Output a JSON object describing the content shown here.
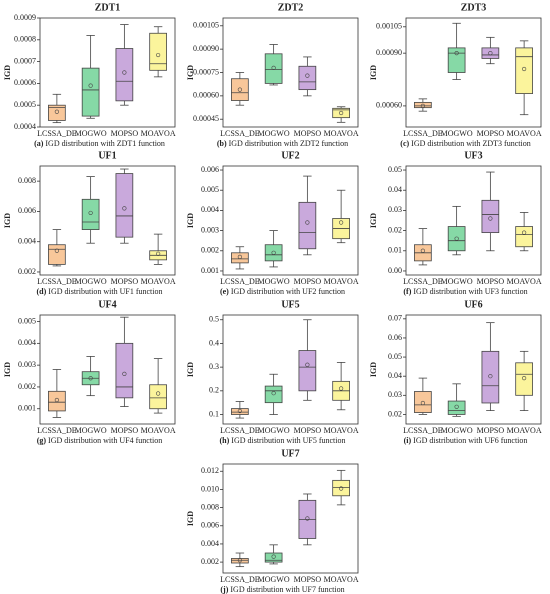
{
  "chart_data": [
    {
      "type": "box",
      "title": "ZDT1",
      "ylabel": "IGD",
      "label": "(a)",
      "caption": "IGD distribution with ZDT1 function",
      "categories": [
        "LCSSA_DE",
        "MOGWO",
        "MOPSO",
        "MOAVOA"
      ],
      "colors": [
        "#f8c79a",
        "#86d9a6",
        "#c9a9dc",
        "#fbf49c"
      ],
      "ylim": [
        0.0004,
        0.0009
      ],
      "yticks": [
        0.0004,
        0.0005,
        0.0006,
        0.0007,
        0.0008,
        0.0009
      ],
      "boxes": [
        {
          "min": 0.00042,
          "q1": 0.00043,
          "median": 0.00049,
          "q3": 0.0005,
          "max": 0.00055,
          "mean": 0.00047
        },
        {
          "min": 0.00044,
          "q1": 0.00045,
          "median": 0.00057,
          "q3": 0.00067,
          "max": 0.00082,
          "mean": 0.00059
        },
        {
          "min": 0.0005,
          "q1": 0.00052,
          "median": 0.00061,
          "q3": 0.00076,
          "max": 0.00087,
          "mean": 0.00065
        },
        {
          "min": 0.00063,
          "q1": 0.00066,
          "median": 0.00069,
          "q3": 0.00083,
          "max": 0.00086,
          "mean": 0.00073
        }
      ]
    },
    {
      "type": "box",
      "title": "ZDT2",
      "ylabel": "IGD",
      "label": "(b)",
      "caption": "IGD distribution with ZDT2 function",
      "categories": [
        "LCSSA_DE",
        "MOGWO",
        "MOPSO",
        "MOAVOA"
      ],
      "colors": [
        "#f8c79a",
        "#86d9a6",
        "#c9a9dc",
        "#fbf49c"
      ],
      "ylim": [
        0.0004,
        0.0011
      ],
      "yticks": [
        0.00045,
        {
          "value": 0.0006,
          "label": "0.00060"
        },
        0.00075,
        {
          "value": 0.0009,
          "label": "0.00090"
        },
        0.00105
      ],
      "boxes": [
        {
          "min": 0.00054,
          "q1": 0.00057,
          "median": 0.00062,
          "q3": 0.00071,
          "max": 0.00075,
          "mean": 0.00064
        },
        {
          "min": 0.00067,
          "q1": 0.00068,
          "median": 0.00077,
          "q3": 0.00087,
          "max": 0.00093,
          "mean": 0.00078
        },
        {
          "min": 0.0006,
          "q1": 0.00064,
          "median": 0.00069,
          "q3": 0.00079,
          "max": 0.00085,
          "mean": 0.00073
        },
        {
          "min": 0.00043,
          "q1": 0.00046,
          "median": 0.00051,
          "q3": 0.00052,
          "max": 0.00053,
          "mean": 0.00049
        }
      ]
    },
    {
      "type": "box",
      "title": "ZDT3",
      "ylabel": "IGD",
      "label": "(c)",
      "caption": "IGD distribution with ZDT3 function",
      "categories": [
        "LCSSA_DE",
        "MOGWO",
        "MOPSO",
        "MOAVOA"
      ],
      "colors": [
        "#f8c79a",
        "#86d9a6",
        "#c9a9dc",
        "#fbf49c"
      ],
      "ylim": [
        0.00048,
        0.0011
      ],
      "yticks": [
        {
          "value": 0.0006,
          "label": "0.00060"
        },
        {
          "value": 0.0009,
          "label": "0.00090"
        },
        0.00105
      ],
      "boxes": [
        {
          "min": 0.00057,
          "q1": 0.00059,
          "median": 0.0006,
          "q3": 0.00062,
          "max": 0.00064,
          "mean": 0.0006
        },
        {
          "min": 0.00075,
          "q1": 0.00079,
          "median": 0.0009,
          "q3": 0.00093,
          "max": 0.00107,
          "mean": 0.0009
        },
        {
          "min": 0.00084,
          "q1": 0.00087,
          "median": 0.00089,
          "q3": 0.00093,
          "max": 0.00099,
          "mean": 0.0009
        },
        {
          "min": 0.00055,
          "q1": 0.00067,
          "median": 0.00088,
          "q3": 0.00093,
          "max": 0.00097,
          "mean": 0.00081
        }
      ]
    },
    {
      "type": "box",
      "title": "UF1",
      "ylabel": "IGD",
      "label": "(d)",
      "caption": "IGD distribution with UF1 function",
      "categories": [
        "LCSSA_DE",
        "MOGWO",
        "MOPSO",
        "MOAVOA"
      ],
      "colors": [
        "#f8c79a",
        "#86d9a6",
        "#c9a9dc",
        "#fbf49c"
      ],
      "ylim": [
        0.0018,
        0.009
      ],
      "yticks": [
        0.002,
        0.004,
        0.006,
        0.008
      ],
      "boxes": [
        {
          "min": 0.0024,
          "q1": 0.0025,
          "median": 0.0035,
          "q3": 0.0038,
          "max": 0.0048,
          "mean": 0.0034
        },
        {
          "min": 0.0039,
          "q1": 0.0048,
          "median": 0.0053,
          "q3": 0.0068,
          "max": 0.0083,
          "mean": 0.0059
        },
        {
          "min": 0.0039,
          "q1": 0.0043,
          "median": 0.0057,
          "q3": 0.0085,
          "max": 0.0088,
          "mean": 0.0062
        },
        {
          "min": 0.0025,
          "q1": 0.0028,
          "median": 0.0031,
          "q3": 0.0034,
          "max": 0.0045,
          "mean": 0.0032
        }
      ]
    },
    {
      "type": "box",
      "title": "UF2",
      "ylabel": "IGD",
      "label": "(e)",
      "caption": "IGD distribution with UF2 function",
      "categories": [
        "LCSSA_DE",
        "MOGWO",
        "MOPSO",
        "MOAVOA"
      ],
      "colors": [
        "#f8c79a",
        "#86d9a6",
        "#c9a9dc",
        "#fbf49c"
      ],
      "ylim": [
        0.0008,
        0.0062
      ],
      "yticks": [
        0.001,
        0.002,
        0.003,
        0.004,
        0.005,
        0.006
      ],
      "boxes": [
        {
          "min": 0.0011,
          "q1": 0.0014,
          "median": 0.0016,
          "q3": 0.0019,
          "max": 0.0022,
          "mean": 0.0017
        },
        {
          "min": 0.0012,
          "q1": 0.0015,
          "median": 0.0018,
          "q3": 0.0023,
          "max": 0.003,
          "mean": 0.0019
        },
        {
          "min": 0.0018,
          "q1": 0.0021,
          "median": 0.0029,
          "q3": 0.0044,
          "max": 0.0057,
          "mean": 0.0034
        },
        {
          "min": 0.0024,
          "q1": 0.0026,
          "median": 0.0031,
          "q3": 0.0036,
          "max": 0.005,
          "mean": 0.0034
        }
      ]
    },
    {
      "type": "box",
      "title": "UF3",
      "ylabel": "IGD",
      "label": "(f)",
      "caption": "IGD distribution with UF3 function",
      "categories": [
        "LCSSA_DE",
        "MOGWO",
        "MOPSO",
        "MOAVOA"
      ],
      "colors": [
        "#f8c79a",
        "#86d9a6",
        "#c9a9dc",
        "#fbf49c"
      ],
      "ylim": [
        -0.002,
        0.052
      ],
      "yticks": [
        {
          "value": 0,
          "label": "0.00"
        },
        {
          "value": 0.01,
          "label": "0.01"
        },
        {
          "value": 0.02,
          "label": "0.02"
        },
        {
          "value": 0.03,
          "label": "0.03"
        },
        {
          "value": 0.04,
          "label": "0.04"
        },
        {
          "value": 0.05,
          "label": "0.05"
        }
      ],
      "boxes": [
        {
          "min": 0.003,
          "q1": 0.005,
          "median": 0.009,
          "q3": 0.013,
          "max": 0.021,
          "mean": 0.01
        },
        {
          "min": 0.008,
          "q1": 0.01,
          "median": 0.015,
          "q3": 0.022,
          "max": 0.032,
          "mean": 0.016
        },
        {
          "min": 0.01,
          "q1": 0.019,
          "median": 0.028,
          "q3": 0.035,
          "max": 0.049,
          "mean": 0.026
        },
        {
          "min": 0.01,
          "q1": 0.012,
          "median": 0.018,
          "q3": 0.022,
          "max": 0.029,
          "mean": 0.019
        }
      ]
    },
    {
      "type": "box",
      "title": "UF4",
      "ylabel": "IGD",
      "label": "(g)",
      "caption": "IGD distribution with UF4 function",
      "categories": [
        "LCSSA_DE",
        "MOGWO",
        "MOPSO",
        "MOAVOA"
      ],
      "colors": [
        "#f8c79a",
        "#86d9a6",
        "#c9a9dc",
        "#fbf49c"
      ],
      "ylim": [
        0.0003,
        0.0053
      ],
      "yticks": [
        0.001,
        0.002,
        0.003,
        0.004,
        0.005
      ],
      "boxes": [
        {
          "min": 0.0006,
          "q1": 0.0009,
          "median": 0.0013,
          "q3": 0.0018,
          "max": 0.0028,
          "mean": 0.0014
        },
        {
          "min": 0.0016,
          "q1": 0.0021,
          "median": 0.0024,
          "q3": 0.0027,
          "max": 0.0034,
          "mean": 0.0024
        },
        {
          "min": 0.0011,
          "q1": 0.0015,
          "median": 0.002,
          "q3": 0.004,
          "max": 0.0052,
          "mean": 0.0026
        },
        {
          "min": 0.0008,
          "q1": 0.001,
          "median": 0.0015,
          "q3": 0.0021,
          "max": 0.0033,
          "mean": 0.0017
        }
      ]
    },
    {
      "type": "box",
      "title": "UF5",
      "ylabel": "IGD",
      "label": "(h)",
      "caption": "IGD distribution with UF5 function",
      "categories": [
        "LCSSA_DE",
        "MOGWO",
        "MOPSO",
        "MOAVOA"
      ],
      "colors": [
        "#f8c79a",
        "#86d9a6",
        "#c9a9dc",
        "#fbf49c"
      ],
      "ylim": [
        0.06,
        0.52
      ],
      "yticks": [
        0.1,
        0.2,
        0.3,
        0.4,
        0.5
      ],
      "boxes": [
        {
          "min": 0.085,
          "q1": 0.1,
          "median": 0.11,
          "q3": 0.125,
          "max": 0.155,
          "mean": 0.115
        },
        {
          "min": 0.1,
          "q1": 0.15,
          "median": 0.2,
          "q3": 0.22,
          "max": 0.27,
          "mean": 0.19
        },
        {
          "min": 0.16,
          "q1": 0.2,
          "median": 0.3,
          "q3": 0.37,
          "max": 0.5,
          "mean": 0.31
        },
        {
          "min": 0.12,
          "q1": 0.16,
          "median": 0.2,
          "q3": 0.24,
          "max": 0.32,
          "mean": 0.21
        }
      ]
    },
    {
      "type": "box",
      "title": "UF6",
      "ylabel": "IGD",
      "label": "(i)",
      "caption": "IGD distribution with UF6 function",
      "categories": [
        "LCSSA_DE",
        "MOGWO",
        "MOPSO",
        "MOAVOA"
      ],
      "colors": [
        "#f8c79a",
        "#86d9a6",
        "#c9a9dc",
        "#fbf49c"
      ],
      "ylim": [
        0.015,
        0.072
      ],
      "yticks": [
        0.02,
        0.03,
        0.04,
        0.05,
        0.06,
        0.07
      ],
      "boxes": [
        {
          "min": 0.02,
          "q1": 0.021,
          "median": 0.025,
          "q3": 0.032,
          "max": 0.039,
          "mean": 0.026
        },
        {
          "min": 0.019,
          "q1": 0.02,
          "median": 0.022,
          "q3": 0.027,
          "max": 0.036,
          "mean": 0.024
        },
        {
          "min": 0.022,
          "q1": 0.026,
          "median": 0.035,
          "q3": 0.053,
          "max": 0.068,
          "mean": 0.04
        },
        {
          "min": 0.022,
          "q1": 0.03,
          "median": 0.041,
          "q3": 0.047,
          "max": 0.053,
          "mean": 0.039
        }
      ]
    },
    {
      "type": "box",
      "title": "UF7",
      "ylabel": "IGD",
      "label": "(j)",
      "caption": "IGD distribution with UF7 function",
      "categories": [
        "LCSSA_DE",
        "MOGWO",
        "MOPSO",
        "MOAVOA"
      ],
      "colors": [
        "#f8c79a",
        "#86d9a6",
        "#c9a9dc",
        "#fbf49c"
      ],
      "ylim": [
        0.0008,
        0.0128
      ],
      "yticks": [
        0.002,
        0.004,
        0.006,
        0.008,
        {
          "value": 0.01,
          "label": "0.010"
        },
        0.012
      ],
      "boxes": [
        {
          "min": 0.0015,
          "q1": 0.0019,
          "median": 0.0022,
          "q3": 0.0024,
          "max": 0.003,
          "mean": 0.0022
        },
        {
          "min": 0.0018,
          "q1": 0.002,
          "median": 0.0022,
          "q3": 0.003,
          "max": 0.0039,
          "mean": 0.0026
        },
        {
          "min": 0.0039,
          "q1": 0.0046,
          "median": 0.0067,
          "q3": 0.0088,
          "max": 0.0095,
          "mean": 0.0068
        },
        {
          "min": 0.0083,
          "q1": 0.0093,
          "median": 0.0102,
          "q3": 0.011,
          "max": 0.0121,
          "mean": 0.0101
        }
      ]
    }
  ]
}
